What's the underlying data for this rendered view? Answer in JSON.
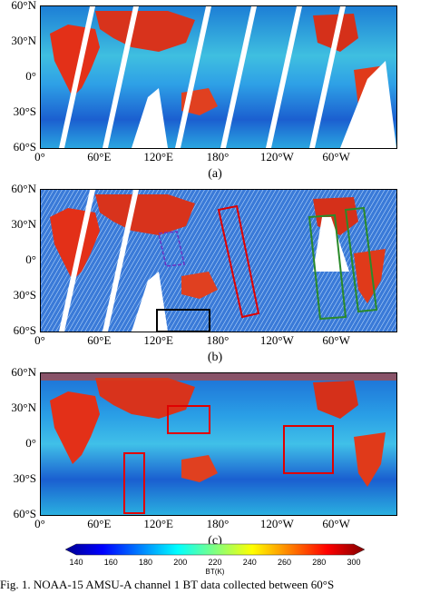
{
  "lat_labels": [
    "60°N",
    "30°N",
    "0°",
    "30°S",
    "60°S"
  ],
  "lon_labels": [
    "0°",
    "60°E",
    "120°E",
    "180°",
    "120°W",
    "60°W"
  ],
  "panels": [
    {
      "tag": "(a)",
      "name": "panel-a"
    },
    {
      "tag": "(b)",
      "name": "panel-b"
    },
    {
      "tag": "(c)",
      "name": "panel-c"
    }
  ],
  "colorbar": {
    "ticks": [
      "140",
      "160",
      "180",
      "200",
      "220",
      "240",
      "260",
      "280",
      "300"
    ],
    "unit": "BT(K)",
    "colors": [
      "#00008f",
      "#0000ff",
      "#0080ff",
      "#00ffff",
      "#80ff80",
      "#ffff00",
      "#ff8000",
      "#ff0000",
      "#800000"
    ]
  },
  "caption": "Fig. 1.    NOAA-15 AMSU-A channel 1 BT data collected between 60°S"
}
